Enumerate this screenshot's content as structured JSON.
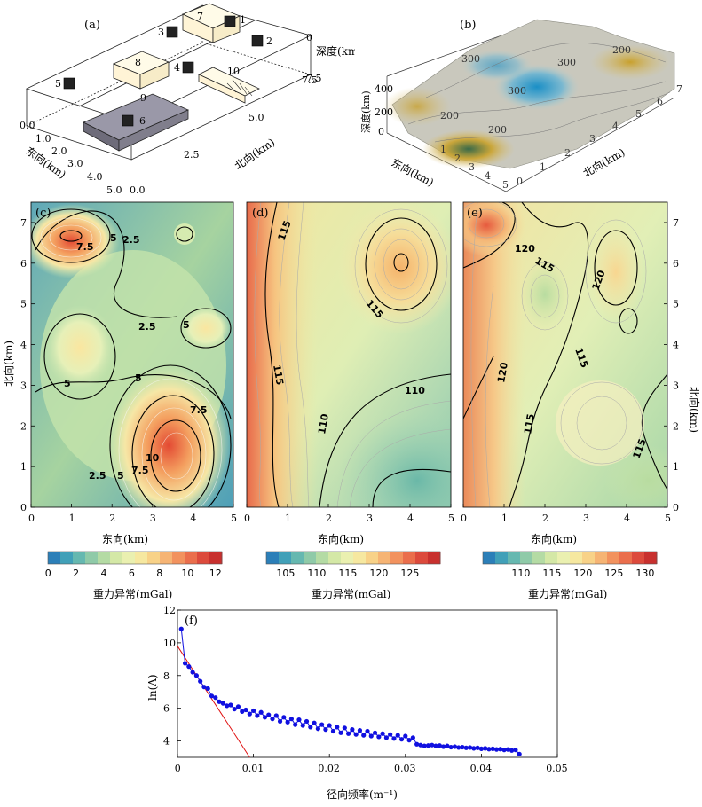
{
  "panel_a": {
    "label": "(a)",
    "depth_label": "深度(km)",
    "north_label": "北向(km)",
    "east_label": "东向(km)",
    "depth_ticks": [
      "0",
      "2.5",
      "5.0",
      "7.5"
    ],
    "north_ticks": [
      "0.0",
      "2.5",
      "5.0",
      "7.5"
    ],
    "east_ticks": [
      "0.0",
      "1.0",
      "2.0",
      "3.0",
      "4.0",
      "5.0"
    ],
    "bodies": [
      "1",
      "2",
      "3",
      "4",
      "5",
      "6",
      "7",
      "8",
      "9",
      "10"
    ]
  },
  "panel_b": {
    "label": "(b)",
    "depth_label": "深度(km)",
    "east_label": "东向(km)",
    "north_label": "北向(km)",
    "depth_ticks": [
      "0",
      "200",
      "400"
    ],
    "contour_labels": [
      "300",
      "200",
      "200",
      "300",
      "200",
      "300"
    ]
  },
  "chart_data": [
    {
      "type": "heatmap",
      "panel": "(c)",
      "xlabel": "东向(km)",
      "ylabel": "北向(km)",
      "xlim": [
        0,
        5
      ],
      "ylim": [
        0,
        7.5
      ],
      "xticks": [
        "0",
        "1",
        "2",
        "3",
        "4",
        "5"
      ],
      "yticks": [
        "0",
        "1",
        "2",
        "3",
        "4",
        "5",
        "6",
        "7"
      ],
      "contour_labels": [
        "7.5",
        "5",
        "2.5",
        "2.5",
        "5",
        "5",
        "5",
        "7.5",
        "10",
        "7.5",
        "5",
        "2.5"
      ],
      "colorbar": {
        "label": "重力异常(mGal)",
        "ticks": [
          "0",
          "2",
          "4",
          "6",
          "8",
          "10",
          "12"
        ],
        "range": [
          0,
          12.5
        ]
      }
    },
    {
      "type": "heatmap",
      "panel": "(d)",
      "xlabel": "东向(km)",
      "xlim": [
        0,
        5
      ],
      "ylim": [
        0,
        7.5
      ],
      "xticks": [
        "0",
        "1",
        "2",
        "3",
        "4",
        "5"
      ],
      "contour_labels": [
        "115",
        "115",
        "115",
        "110",
        "110"
      ],
      "colorbar": {
        "label": "重力异常(mGal)",
        "ticks": [
          "105",
          "110",
          "115",
          "120",
          "125"
        ],
        "range": [
          102,
          130
        ]
      }
    },
    {
      "type": "heatmap",
      "panel": "(e)",
      "xlabel": "东向(km)",
      "ylabel": "北向(km)",
      "xlim": [
        0,
        5
      ],
      "ylim": [
        0,
        7.5
      ],
      "xticks": [
        "0",
        "1",
        "2",
        "3",
        "4",
        "5"
      ],
      "yticks": [
        "0",
        "1",
        "2",
        "3",
        "4",
        "5",
        "6",
        "7"
      ],
      "contour_labels": [
        "120",
        "115",
        "120",
        "115",
        "120",
        "115",
        "115"
      ],
      "colorbar": {
        "label": "重力异常(mGal)",
        "ticks": [
          "110",
          "115",
          "120",
          "125",
          "130"
        ],
        "range": [
          104,
          132
        ]
      }
    },
    {
      "type": "scatter",
      "panel": "(f)",
      "xlabel": "径向频率(m⁻¹)",
      "ylabel": "ln(A)",
      "xlim": [
        0,
        0.05
      ],
      "ylim": [
        3,
        12
      ],
      "xticks": [
        "0",
        "0.01",
        "0.02",
        "0.03",
        "0.04",
        "0.05"
      ],
      "yticks": [
        "4",
        "6",
        "8",
        "10",
        "12"
      ],
      "x": [
        0.0005,
        0.001,
        0.0015,
        0.002,
        0.0025,
        0.003,
        0.0035,
        0.004,
        0.0045,
        0.005,
        0.0055,
        0.006,
        0.0065,
        0.007,
        0.0075,
        0.008,
        0.0085,
        0.009,
        0.0095,
        0.01,
        0.0105,
        0.011,
        0.0115,
        0.012,
        0.0125,
        0.013,
        0.0135,
        0.014,
        0.0145,
        0.015,
        0.0155,
        0.016,
        0.0165,
        0.017,
        0.0175,
        0.018,
        0.0185,
        0.019,
        0.0195,
        0.02,
        0.0205,
        0.021,
        0.0215,
        0.022,
        0.0225,
        0.023,
        0.0235,
        0.024,
        0.0245,
        0.025,
        0.0255,
        0.026,
        0.0265,
        0.027,
        0.0275,
        0.028,
        0.0285,
        0.029,
        0.0295,
        0.03,
        0.0305,
        0.031,
        0.0315,
        0.032,
        0.0325,
        0.033,
        0.0335,
        0.034,
        0.0345,
        0.035,
        0.0355,
        0.036,
        0.0365,
        0.037,
        0.0375,
        0.038,
        0.0385,
        0.039,
        0.0395,
        0.04,
        0.0405,
        0.041,
        0.0415,
        0.042,
        0.0425,
        0.043,
        0.0435,
        0.044,
        0.0445,
        0.045
      ],
      "y": [
        10.85,
        8.75,
        8.55,
        8.2,
        8.0,
        7.65,
        7.3,
        7.2,
        6.75,
        6.65,
        6.4,
        6.3,
        6.15,
        6.2,
        5.95,
        6.1,
        5.8,
        5.9,
        5.65,
        5.85,
        5.55,
        5.75,
        5.45,
        5.6,
        5.35,
        5.55,
        5.2,
        5.45,
        5.15,
        5.35,
        5.0,
        5.3,
        4.95,
        5.2,
        4.85,
        5.1,
        4.75,
        5.0,
        4.7,
        4.95,
        4.6,
        4.85,
        4.5,
        4.8,
        4.45,
        4.7,
        4.4,
        4.65,
        4.35,
        4.6,
        4.3,
        4.5,
        4.25,
        4.45,
        4.2,
        4.4,
        4.15,
        4.35,
        4.1,
        4.3,
        4.05,
        4.2,
        3.8,
        3.75,
        3.7,
        3.72,
        3.75,
        3.7,
        3.72,
        3.65,
        3.7,
        3.62,
        3.65,
        3.6,
        3.62,
        3.58,
        3.6,
        3.55,
        3.58,
        3.52,
        3.55,
        3.5,
        3.52,
        3.48,
        3.5,
        3.45,
        3.48,
        3.42,
        3.45,
        3.2
      ],
      "fit_line": {
        "x": [
          0,
          0.0095
        ],
        "y": [
          9.8,
          3.0
        ],
        "color": "#e01010"
      },
      "series_color": "#1010e0"
    }
  ]
}
